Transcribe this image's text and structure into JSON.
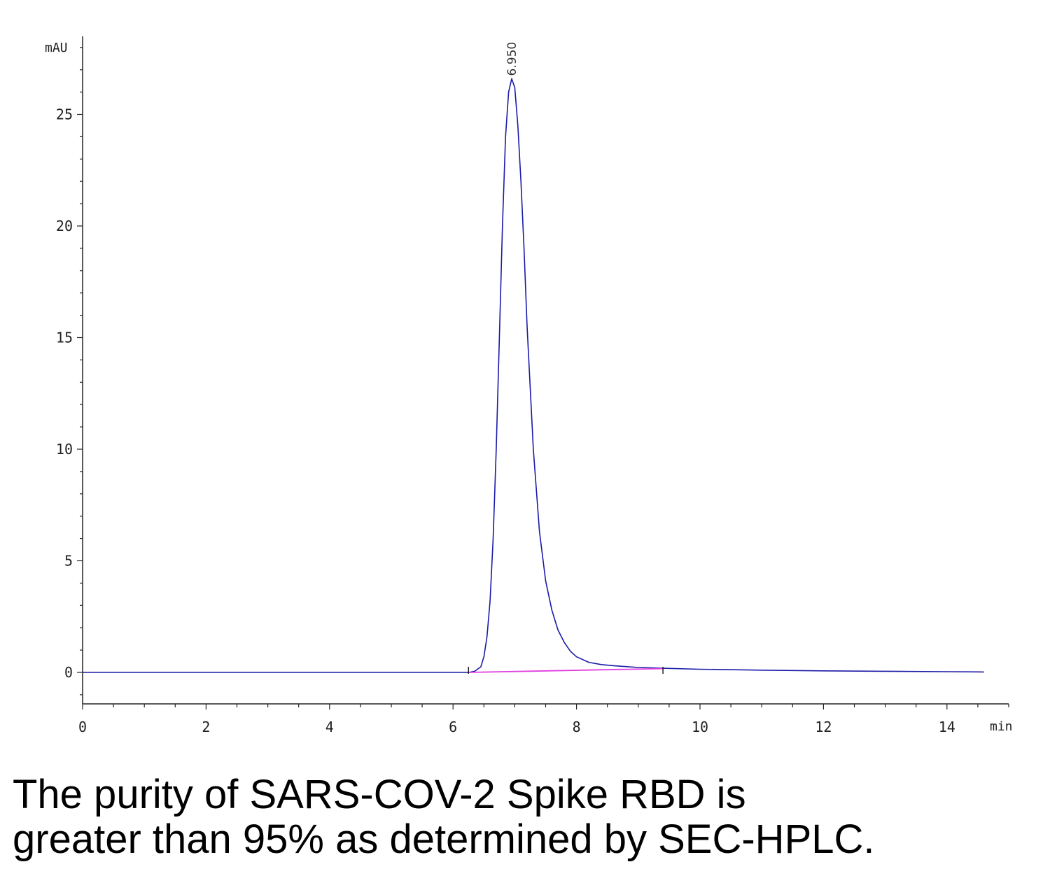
{
  "chart_data": {
    "type": "line",
    "title": "",
    "xlabel": "",
    "ylabel": "",
    "x_unit": "min",
    "y_unit": "mAU",
    "xlim": [
      0,
      15
    ],
    "ylim": [
      -1.4,
      28.5
    ],
    "x_ticks": [
      0,
      2,
      4,
      6,
      8,
      10,
      12,
      14
    ],
    "y_ticks": [
      0,
      5,
      10,
      15,
      20,
      25
    ],
    "grid": false,
    "peaks": [
      {
        "retention_time": 6.95,
        "label": "6.950",
        "height": 26.6
      }
    ],
    "series": [
      {
        "color": "#1a1aa8",
        "x": [
          0,
          2,
          4,
          6.0,
          6.25,
          6.35,
          6.45,
          6.5,
          6.55,
          6.6,
          6.65,
          6.7,
          6.75,
          6.8,
          6.85,
          6.9,
          6.95,
          7.0,
          7.05,
          7.1,
          7.15,
          7.2,
          7.3,
          7.4,
          7.5,
          7.6,
          7.7,
          7.8,
          7.9,
          8.0,
          8.2,
          8.4,
          8.6,
          9.0,
          9.5,
          10.0,
          11.0,
          12.0,
          13.0,
          14.0,
          14.6
        ],
        "y": [
          0,
          0,
          0,
          0,
          0,
          0.05,
          0.25,
          0.7,
          1.6,
          3.2,
          6.0,
          10.0,
          15.0,
          20.0,
          24.0,
          26.0,
          26.6,
          26.2,
          24.5,
          22.0,
          19.0,
          15.5,
          10.0,
          6.3,
          4.1,
          2.8,
          1.9,
          1.35,
          0.95,
          0.7,
          0.45,
          0.35,
          0.3,
          0.22,
          0.18,
          0.14,
          0.1,
          0.07,
          0.05,
          0.03,
          0.02
        ]
      },
      {
        "color": "#e040e0",
        "x": [
          6.25,
          9.4
        ],
        "y": [
          0,
          0.17
        ]
      }
    ],
    "baseline_markers": [
      6.25,
      9.4
    ]
  },
  "caption": {
    "line1": "The purity of SARS-COV-2 Spike RBD is",
    "line2": "greater than 95% as determined by SEC-HPLC."
  }
}
